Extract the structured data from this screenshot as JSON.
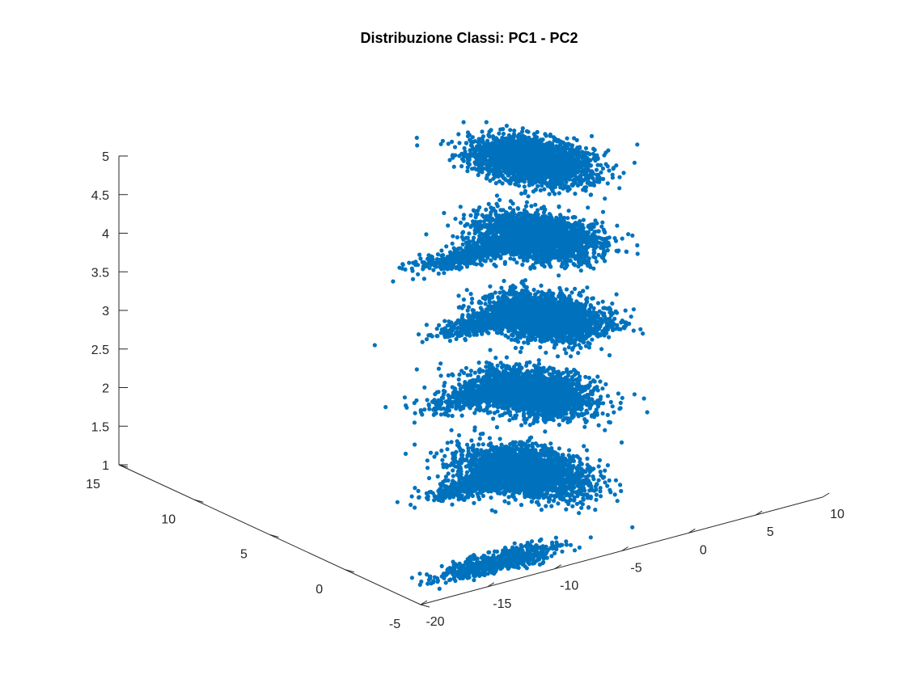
{
  "chart_data": {
    "type": "scatter",
    "title": "Distribuzione Classi: PC1 - PC2",
    "xlabel": "",
    "ylabel": "",
    "zlabel": "",
    "projection": "3d",
    "grid": false,
    "xlim": [
      -20,
      10
    ],
    "ylim": [
      -5,
      15
    ],
    "zlim": [
      1,
      5
    ],
    "x_ticks": [
      -20,
      -15,
      -10,
      -5,
      0,
      5,
      10
    ],
    "y_ticks": [
      -5,
      0,
      5,
      10,
      15
    ],
    "z_ticks": [
      1,
      1.5,
      2,
      2.5,
      3,
      3.5,
      4,
      4.5,
      5
    ],
    "x_tick_labels": [
      "-20",
      "-15",
      "-10",
      "-5",
      "0",
      "5",
      "10"
    ],
    "y_tick_labels": [
      "-5",
      "0",
      "5",
      "10",
      "15"
    ],
    "z_tick_labels": [
      "1",
      "1.5",
      "2",
      "2.5",
      "3",
      "3.5",
      "4",
      "4.5",
      "5"
    ],
    "marker_color": "#0072BD",
    "series": [
      {
        "z_level": 1,
        "clusters": [
          {
            "x": -1.5,
            "y": 4.5,
            "spread_x": 3.0,
            "spread_y": 3.0,
            "count": 2600
          },
          {
            "x": -12.0,
            "y": -3.0,
            "spread_x": 4.5,
            "spread_y": 0.8,
            "count": 650
          }
        ]
      },
      {
        "z_level": 2,
        "clusters": [
          {
            "x": -1.0,
            "y": 4.5,
            "spread_x": 3.0,
            "spread_y": 2.8,
            "count": 2300
          },
          {
            "x": -12.5,
            "y": -2.5,
            "spread_x": 4.0,
            "spread_y": 0.8,
            "count": 600
          }
        ]
      },
      {
        "z_level": 3,
        "clusters": [
          {
            "x": -0.5,
            "y": 4.0,
            "spread_x": 3.0,
            "spread_y": 2.8,
            "count": 2300
          },
          {
            "x": -11.0,
            "y": -1.5,
            "spread_x": 4.5,
            "spread_y": 1.0,
            "count": 600
          }
        ]
      },
      {
        "z_level": 4,
        "clusters": [
          {
            "x": -0.5,
            "y": 4.5,
            "spread_x": 3.0,
            "spread_y": 2.8,
            "count": 2300
          },
          {
            "x": -11.0,
            "y": -2.0,
            "spread_x": 4.0,
            "spread_y": 0.8,
            "count": 600
          }
        ]
      },
      {
        "z_level": 5,
        "clusters": [
          {
            "x": -1.0,
            "y": 4.5,
            "spread_x": 3.0,
            "spread_y": 2.8,
            "count": 2500
          },
          {
            "x": -12.5,
            "y": -2.5,
            "spread_x": 5.0,
            "spread_y": 0.8,
            "count": 650
          }
        ]
      }
    ]
  }
}
